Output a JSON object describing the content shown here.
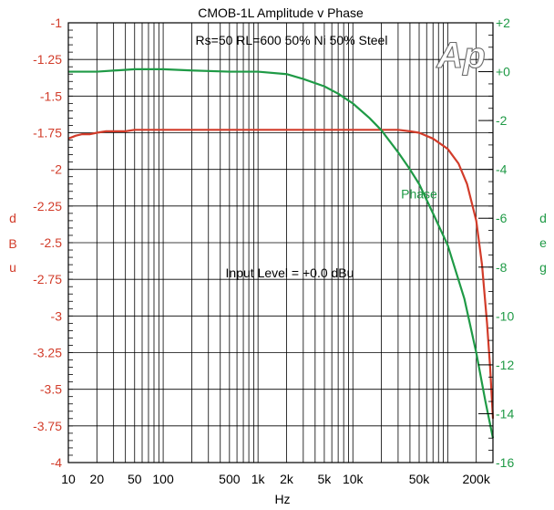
{
  "chart_data": {
    "type": "line",
    "title": "CMOB-1L  Amplitude v Phase",
    "subtitle": "Rs=50 RL=600 50% Ni 50% Steel",
    "logo_text": "Ap",
    "annotation": "Input Level = +0.0 dBu",
    "xlabel": "Hz",
    "ylabel_left": [
      "d",
      "B",
      "u"
    ],
    "ylabel_right": [
      "d",
      "e",
      "g"
    ],
    "x_scale": "log",
    "xlim": [
      10,
      300000
    ],
    "ylim_left": [
      -4,
      -1
    ],
    "ylim_right": [
      -16,
      2
    ],
    "grid": true,
    "x_tick_labels": [
      {
        "value": 10,
        "label": "10"
      },
      {
        "value": 20,
        "label": "20"
      },
      {
        "value": 50,
        "label": "50"
      },
      {
        "value": 100,
        "label": "100"
      },
      {
        "value": 500,
        "label": "500"
      },
      {
        "value": 1000,
        "label": "1k"
      },
      {
        "value": 2000,
        "label": "2k"
      },
      {
        "value": 5000,
        "label": "5k"
      },
      {
        "value": 10000,
        "label": "10k"
      },
      {
        "value": 50000,
        "label": "50k"
      },
      {
        "value": 200000,
        "label": "200k"
      }
    ],
    "y_left_ticks": [
      {
        "value": -1,
        "label": "-1"
      },
      {
        "value": -1.25,
        "label": "-1.25"
      },
      {
        "value": -1.5,
        "label": "-1.5"
      },
      {
        "value": -1.75,
        "label": "-1.75"
      },
      {
        "value": -2,
        "label": "-2"
      },
      {
        "value": -2.25,
        "label": "-2.25"
      },
      {
        "value": -2.5,
        "label": "-2.5"
      },
      {
        "value": -2.75,
        "label": "-2.75"
      },
      {
        "value": -3,
        "label": "-3"
      },
      {
        "value": -3.25,
        "label": "-3.25"
      },
      {
        "value": -3.5,
        "label": "-3.5"
      },
      {
        "value": -3.75,
        "label": "-3.75"
      },
      {
        "value": -4,
        "label": "-4"
      }
    ],
    "y_right_ticks": [
      {
        "value": 2,
        "label": "+2"
      },
      {
        "value": 0,
        "label": "+0"
      },
      {
        "value": -2,
        "label": "-2"
      },
      {
        "value": -4,
        "label": "-4"
      },
      {
        "value": -6,
        "label": "-6"
      },
      {
        "value": -8,
        "label": "-8"
      },
      {
        "value": -10,
        "label": "-10"
      },
      {
        "value": -12,
        "label": "-12"
      },
      {
        "value": -14,
        "label": "-14"
      },
      {
        "value": -16,
        "label": "-16"
      }
    ],
    "series": [
      {
        "axis": "left",
        "color": "#d23c2a",
        "x": [
          10,
          12,
          14,
          17,
          20,
          25,
          30,
          40,
          50,
          70,
          100,
          200,
          500,
          1000,
          2000,
          5000,
          10000,
          20000,
          30000,
          40000,
          50000,
          70000,
          100000,
          130000,
          160000,
          200000,
          230000,
          260000,
          280000,
          300000
        ],
        "values": [
          -1.79,
          -1.77,
          -1.76,
          -1.76,
          -1.75,
          -1.74,
          -1.74,
          -1.74,
          -1.73,
          -1.73,
          -1.73,
          -1.73,
          -1.73,
          -1.73,
          -1.73,
          -1.73,
          -1.73,
          -1.73,
          -1.73,
          -1.74,
          -1.75,
          -1.79,
          -1.86,
          -1.96,
          -2.1,
          -2.35,
          -2.65,
          -3.05,
          -3.35,
          -3.7
        ]
      },
      {
        "name": "Phase",
        "axis": "right",
        "color": "#1f9a46",
        "x": [
          10,
          20,
          50,
          100,
          200,
          500,
          1000,
          2000,
          3000,
          5000,
          7000,
          10000,
          15000,
          20000,
          30000,
          40000,
          50000,
          70000,
          100000,
          150000,
          200000,
          250000,
          300000
        ],
        "values": [
          0.0,
          0.0,
          0.1,
          0.1,
          0.05,
          0.0,
          0.0,
          -0.1,
          -0.3,
          -0.6,
          -0.9,
          -1.3,
          -1.9,
          -2.4,
          -3.3,
          -4.0,
          -4.6,
          -5.8,
          -7.1,
          -9.3,
          -11.5,
          -13.5,
          -15.0
        ]
      }
    ],
    "phase_label": {
      "text": "Phase",
      "x": 50000,
      "y": -5.0
    }
  }
}
